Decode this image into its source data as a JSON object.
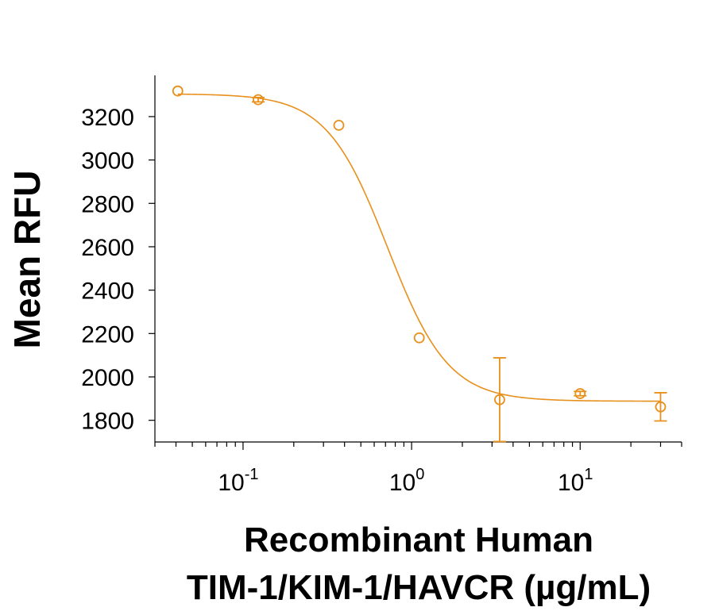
{
  "chart_data": {
    "type": "scatter",
    "x_scale": "log",
    "xlabel_line1": "Recombinant Human",
    "xlabel_line2": "TIM-1/KIM-1/HAVCR (µg/mL)",
    "ylabel": "Mean RFU",
    "xlim": [
      0.03,
      40
    ],
    "ylim": [
      1700,
      3390
    ],
    "x_tick_values": [
      0.1,
      1,
      10
    ],
    "x_tick_labels": [
      {
        "base": "10",
        "exp": "-1"
      },
      {
        "base": "10",
        "exp": "0"
      },
      {
        "base": "10",
        "exp": "1"
      }
    ],
    "y_ticks": [
      1800,
      2000,
      2200,
      2400,
      2600,
      2800,
      3000,
      3200
    ],
    "color": "#E8901C",
    "series": [
      {
        "points": [
          {
            "x": 0.041,
            "y": 3318,
            "err": 0
          },
          {
            "x": 0.123,
            "y": 3278,
            "err": 10
          },
          {
            "x": 0.37,
            "y": 3160,
            "err": 0
          },
          {
            "x": 1.11,
            "y": 2180,
            "err": 0
          },
          {
            "x": 3.33,
            "y": 1895,
            "err": 193
          },
          {
            "x": 10.0,
            "y": 1923,
            "err": 10
          },
          {
            "x": 30.0,
            "y": 1862,
            "err": 65
          }
        ],
        "fit": {
          "bottom": 1888,
          "top": 3305,
          "ec50": 0.72,
          "hill": 2.4
        }
      }
    ]
  }
}
